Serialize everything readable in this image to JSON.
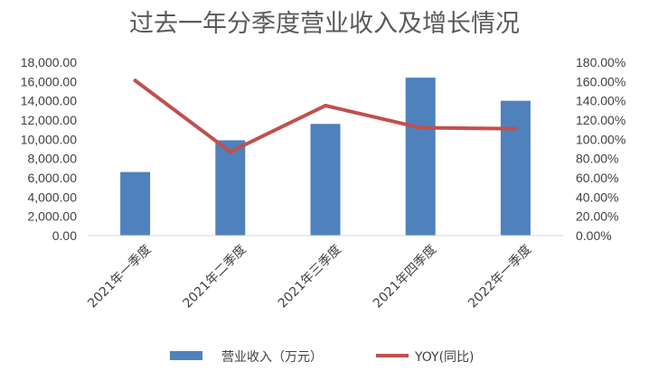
{
  "chart_data": {
    "type": "bar+line",
    "title": "过去一年分季度营业收入及增长情况",
    "categories": [
      "2021年一季度",
      "2021年二季度",
      "2021年三季度",
      "2021年四季度",
      "2022年一季度"
    ],
    "series": [
      {
        "name": "营业收入（万元）",
        "type": "bar",
        "axis": "left",
        "color": "#4F81BD",
        "values": [
          6600,
          9900,
          11600,
          16400,
          14000
        ]
      },
      {
        "name": "YOY(同比)",
        "type": "line",
        "axis": "right",
        "color": "#C0504D",
        "values": [
          161.0,
          87.0,
          135.0,
          112.0,
          111.0
        ]
      }
    ],
    "y_left": {
      "ylim": [
        0,
        18000
      ],
      "ticks": [
        "0.00",
        "2,000.00",
        "4,000.00",
        "6,000.00",
        "8,000.00",
        "10,000.00",
        "12,000.00",
        "14,000.00",
        "16,000.00",
        "18,000.00"
      ]
    },
    "y_right": {
      "ylim": [
        0,
        180
      ],
      "ticks": [
        "0.00%",
        "20.00%",
        "40.00%",
        "60.00%",
        "80.00%",
        "100.00%",
        "120.00%",
        "140.00%",
        "160.00%",
        "180.00%"
      ]
    },
    "grid": false,
    "legend_position": "bottom"
  }
}
